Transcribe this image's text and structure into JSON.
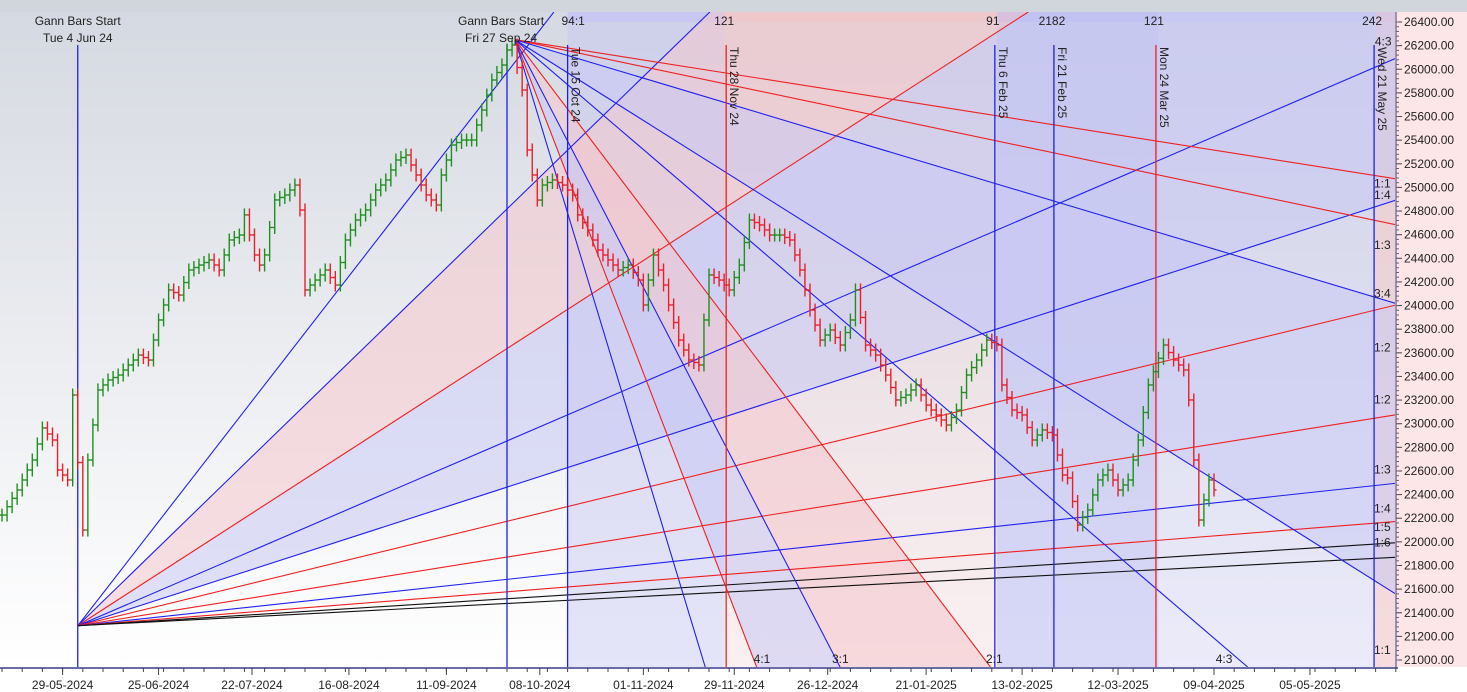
{
  "chart_data": {
    "type": "ohlc-bar",
    "instrument_note": "",
    "y_axis": {
      "min": 21000,
      "max": 26400,
      "step": 200,
      "tick_format_decimals": 2,
      "position": "right"
    },
    "x_axis": {
      "unit": "trading-day index",
      "tick_labels": [
        {
          "t": 12,
          "label": "29-05-2024"
        },
        {
          "t": 31,
          "label": "25-06-2024"
        },
        {
          "t": 49.5,
          "label": "22-07-2024"
        },
        {
          "t": 68.7,
          "label": "16-08-2024"
        },
        {
          "t": 88,
          "label": "11-09-2024"
        },
        {
          "t": 106.5,
          "label": "08-10-2024"
        },
        {
          "t": 127,
          "label": "01-11-2024"
        },
        {
          "t": 145,
          "label": "29-11-2024"
        },
        {
          "t": 163.5,
          "label": "26-12-2024"
        },
        {
          "t": 183,
          "label": "21-01-2025"
        },
        {
          "t": 202,
          "label": "13-02-2025"
        },
        {
          "t": 221,
          "label": "12-03-2025"
        },
        {
          "t": 240,
          "label": "09-04-2025"
        },
        {
          "t": 259,
          "label": "05-05-2025"
        }
      ]
    },
    "colors": {
      "up": "#1f8f1f",
      "down": "#e8202a",
      "blue": "#2020ee",
      "red": "#ee2020",
      "black": "#111111"
    },
    "closes": [
      [
        0,
        22227
      ],
      [
        3,
        22439
      ],
      [
        6,
        22693
      ],
      [
        8,
        22964
      ],
      [
        10,
        22862
      ],
      [
        11,
        22608
      ],
      [
        13,
        22524
      ],
      [
        14,
        23243
      ],
      [
        16,
        22100
      ],
      [
        17,
        22693
      ],
      [
        19,
        23286
      ],
      [
        21,
        23370
      ],
      [
        23,
        23412
      ],
      [
        25,
        23497
      ],
      [
        27,
        23581
      ],
      [
        29,
        23539
      ],
      [
        31,
        23878
      ],
      [
        33,
        24132
      ],
      [
        35,
        24089
      ],
      [
        37,
        24301
      ],
      [
        39,
        24343
      ],
      [
        41,
        24386
      ],
      [
        43,
        24301
      ],
      [
        45,
        24555
      ],
      [
        47,
        24597
      ],
      [
        48,
        24767
      ],
      [
        50,
        24428
      ],
      [
        51,
        24343
      ],
      [
        52,
        24428
      ],
      [
        54,
        24894
      ],
      [
        56,
        24936
      ],
      [
        58,
        25020
      ],
      [
        59,
        24809
      ],
      [
        60,
        24132
      ],
      [
        62,
        24216
      ],
      [
        64,
        24301
      ],
      [
        66,
        24174
      ],
      [
        68,
        24555
      ],
      [
        70,
        24724
      ],
      [
        72,
        24809
      ],
      [
        74,
        24978
      ],
      [
        76,
        25063
      ],
      [
        78,
        25232
      ],
      [
        80,
        25274
      ],
      [
        82,
        25105
      ],
      [
        84,
        24936
      ],
      [
        86,
        24851
      ],
      [
        87,
        25105
      ],
      [
        89,
        25359
      ],
      [
        91,
        25401
      ],
      [
        93,
        25401
      ],
      [
        95,
        25655
      ],
      [
        97,
        25909
      ],
      [
        99,
        26036
      ],
      [
        100,
        26163
      ],
      [
        101,
        26205
      ],
      [
        103,
        25824
      ],
      [
        104,
        25317
      ],
      [
        106,
        24893
      ],
      [
        107,
        25020
      ],
      [
        109,
        25063
      ],
      [
        111,
        25020
      ],
      [
        113,
        24936
      ],
      [
        114,
        24767
      ],
      [
        116,
        24639
      ],
      [
        118,
        24470
      ],
      [
        120,
        24386
      ],
      [
        122,
        24301
      ],
      [
        124,
        24343
      ],
      [
        126,
        24216
      ],
      [
        127,
        24005
      ],
      [
        129,
        24428
      ],
      [
        131,
        24174
      ],
      [
        132,
        24005
      ],
      [
        134,
        23708
      ],
      [
        136,
        23539
      ],
      [
        138,
        23497
      ],
      [
        140,
        24259
      ],
      [
        142,
        24216
      ],
      [
        144,
        24132
      ],
      [
        146,
        24343
      ],
      [
        148,
        24724
      ],
      [
        150,
        24682
      ],
      [
        152,
        24597
      ],
      [
        154,
        24597
      ],
      [
        156,
        24555
      ],
      [
        158,
        24301
      ],
      [
        160,
        23962
      ],
      [
        162,
        23708
      ],
      [
        164,
        23793
      ],
      [
        166,
        23666
      ],
      [
        168,
        23878
      ],
      [
        169,
        24132
      ],
      [
        171,
        23666
      ],
      [
        173,
        23581
      ],
      [
        175,
        23412
      ],
      [
        177,
        23201
      ],
      [
        179,
        23243
      ],
      [
        181,
        23328
      ],
      [
        183,
        23158
      ],
      [
        185,
        23074
      ],
      [
        187,
        22989
      ],
      [
        189,
        23116
      ],
      [
        191,
        23412
      ],
      [
        193,
        23539
      ],
      [
        195,
        23708
      ],
      [
        197,
        23666
      ],
      [
        198,
        23328
      ],
      [
        200,
        23116
      ],
      [
        202,
        23074
      ],
      [
        204,
        22862
      ],
      [
        206,
        22947
      ],
      [
        208,
        22904
      ],
      [
        210,
        22566
      ],
      [
        211,
        22541
      ],
      [
        213,
        22143
      ],
      [
        215,
        22270
      ],
      [
        217,
        22524
      ],
      [
        219,
        22608
      ],
      [
        221,
        22439
      ],
      [
        223,
        22524
      ],
      [
        225,
        22862
      ],
      [
        227,
        23328
      ],
      [
        230,
        23666
      ],
      [
        232,
        23539
      ],
      [
        234,
        23455
      ],
      [
        235,
        23201
      ],
      [
        237,
        22185
      ],
      [
        239,
        22524
      ],
      [
        240,
        22439
      ]
    ],
    "gann_starts": [
      {
        "t": 15,
        "price": 21290,
        "title": "Gann Bars Start",
        "date": "Tue 4 Jun 24"
      },
      {
        "t": 101.6,
        "price": 26250,
        "title": "Gann Bars Start",
        "date": "Fri 27 Sep 24"
      }
    ],
    "fan_up": [
      {
        "slope": 55.1,
        "color": "blue"
      },
      {
        "slope": 41.5,
        "color": "blue"
      },
      {
        "slope": 27.6,
        "color": "red"
      },
      {
        "slope": 18.4,
        "color": "blue"
      },
      {
        "slope": 13.8,
        "color": "blue"
      },
      {
        "slope": 10.4,
        "color": "red"
      },
      {
        "slope": 6.84,
        "color": "red"
      },
      {
        "slope": 4.62,
        "color": "blue"
      },
      {
        "slope": 3.38,
        "color": "red"
      },
      {
        "slope": 2.69,
        "color": "black"
      },
      {
        "slope": 2.22,
        "color": "black"
      }
    ],
    "fan_down": [
      {
        "slope": 6.75,
        "color": "red"
      },
      {
        "slope": 8.98,
        "color": "red"
      },
      {
        "slope": 12.8,
        "color": "blue"
      },
      {
        "slope": 26.9,
        "color": "blue"
      },
      {
        "slope": 36.6,
        "color": "blue"
      },
      {
        "slope": 56.4,
        "color": "red"
      },
      {
        "slope": 82.5,
        "color": "blue"
      },
      {
        "slope": 111,
        "color": "red"
      },
      {
        "slope": 141,
        "color": "blue"
      }
    ],
    "fan_fills": [
      {
        "fan": "up",
        "a": 1,
        "b": 2,
        "color": "#f4c6cc"
      },
      {
        "fan": "up",
        "a": 2,
        "b": 4,
        "color": "#c9c9f4"
      },
      {
        "fan": "down",
        "a": 2,
        "b": 3,
        "color": "#c9c9f4"
      },
      {
        "fan": "down",
        "a": 5,
        "b": 6,
        "color": "#f4c6cc"
      },
      {
        "fan": "down",
        "a": 6,
        "b": 7,
        "color": "#c9c9f4"
      }
    ],
    "time_bands": [
      {
        "t0": 112,
        "t1": 143,
        "color": "#c6c6f2",
        "opacity": 0.45
      },
      {
        "t0": 143,
        "t1": 197,
        "color": "#f0c4c8",
        "opacity": 0.25
      },
      {
        "t0": 197,
        "t1": 229,
        "color": "#b8b8f0",
        "opacity": 0.55
      },
      {
        "t0": 229,
        "t1": 272,
        "color": "#c6c6f2",
        "opacity": 0.35
      },
      {
        "t0": 272,
        "t1": 276.5,
        "color": "#f0c4c8",
        "opacity": 0.6
      }
    ],
    "vertical_lines": [
      {
        "t": 15,
        "color": "blue",
        "label": ""
      },
      {
        "t": 100,
        "color": "blue",
        "label": ""
      },
      {
        "t": 112,
        "color": "blue",
        "label": "Tue 15 Oct 24"
      },
      {
        "t": 143.4,
        "color": "red",
        "label": "Thu 28 Nov 24"
      },
      {
        "t": 196.6,
        "color": "blue",
        "label": "Thu 6 Feb 25"
      },
      {
        "t": 208.3,
        "color": "blue",
        "label": "Fri 21 Feb 25"
      },
      {
        "t": 228.5,
        "color": "red",
        "label": "Mon 24 Mar 25"
      },
      {
        "t": 271.7,
        "color": "blue",
        "label": "Wed 21 May 25"
      }
    ],
    "top_counts": [
      {
        "t": 113.5,
        "label": "94:1"
      },
      {
        "t": 143.4,
        "label": "121"
      },
      {
        "t": 196.6,
        "label": "91"
      },
      {
        "t": 208.3,
        "label": "2182"
      },
      {
        "t": 228.5,
        "label": "121"
      },
      {
        "t": 271.7,
        "label": "242"
      }
    ],
    "ratio_labels_right": [
      {
        "price": 25000,
        "label": "1:1"
      },
      {
        "price": 24900,
        "label": "1:4"
      },
      {
        "price": 24480,
        "label": "1:3"
      },
      {
        "price": 24070,
        "label": "3:4"
      },
      {
        "price": 23610,
        "label": "1:2"
      },
      {
        "price": 23170,
        "label": "1:2"
      },
      {
        "price": 22580,
        "label": "1:3"
      },
      {
        "price": 22250,
        "label": "1:4"
      },
      {
        "price": 22090,
        "label": "1:5"
      },
      {
        "price": 21960,
        "label": "1:6"
      },
      {
        "price": 21050,
        "label": "1:1"
      }
    ],
    "ratio_labels_bottom": [
      {
        "t": 150.5,
        "label": "4:1"
      },
      {
        "t": 166,
        "label": "3:1"
      },
      {
        "t": 196.5,
        "label": "2:1"
      },
      {
        "t": 242,
        "label": "4:3"
      },
      {
        "t": 273.5,
        "label": "4:3",
        "price": 26200
      }
    ]
  }
}
